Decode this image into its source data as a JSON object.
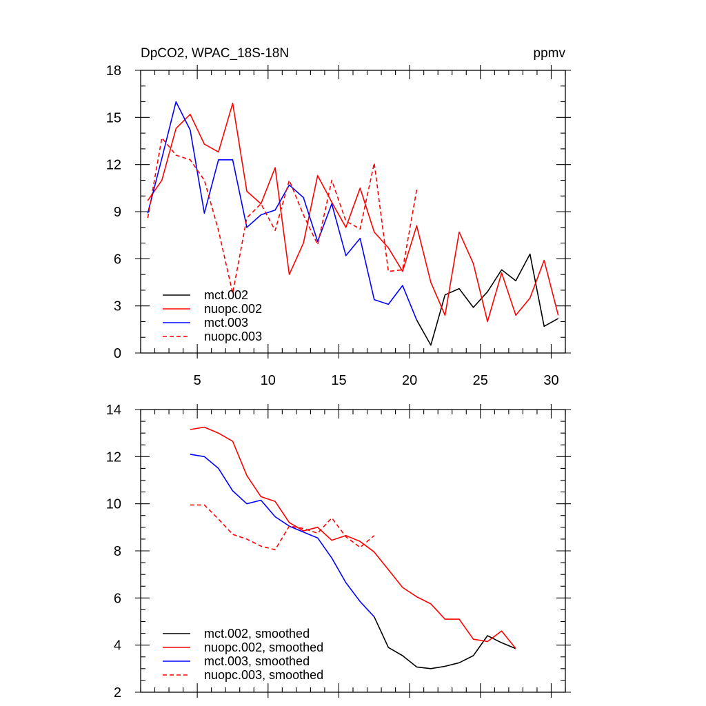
{
  "colors": {
    "mct_002": "#000000",
    "nuopc_002": "#ff0000",
    "mct_003": "#0000ff",
    "nuopc_003": "#ff0000"
  },
  "chart_data": [
    {
      "type": "line",
      "title": "DpCO2, WPAC_18S-18N",
      "units": "ppmv",
      "xlim": [
        1,
        31
      ],
      "ylim": [
        0,
        18
      ],
      "xticks": [
        5,
        10,
        15,
        20,
        25,
        30
      ],
      "xtick_labels": [
        "5",
        "10",
        "15",
        "20",
        "25",
        "30"
      ],
      "yticks": [
        0,
        3,
        6,
        9,
        12,
        15,
        18
      ],
      "ytick_labels": [
        "0",
        "3",
        "6",
        "9",
        "12",
        "15",
        "18"
      ],
      "legend_position": "bottom-left",
      "series": [
        {
          "name": "mct.002",
          "style": "solid",
          "color": "#000000",
          "x": [
            20.5,
            21.5,
            22.5,
            23.5,
            24.5,
            25.5,
            26.5,
            27.5,
            28.5,
            29.5,
            30.5
          ],
          "y": [
            2.1,
            0.5,
            3.7,
            4.1,
            2.9,
            3.9,
            5.3,
            4.6,
            6.3,
            1.7,
            2.2
          ]
        },
        {
          "name": "nuopc.002",
          "style": "solid",
          "color": "#ff0000",
          "x": [
            1.5,
            2.5,
            3.5,
            4.5,
            5.5,
            6.5,
            7.5,
            8.5,
            9.5,
            10.5,
            11.5,
            12.5,
            13.5,
            14.5,
            15.5,
            16.5,
            17.5,
            18.5,
            19.5,
            20.5,
            21.5,
            22.5,
            23.5,
            24.5,
            25.5,
            26.5,
            27.5,
            28.5,
            29.5,
            30.5
          ],
          "y": [
            9.7,
            11.0,
            14.3,
            15.2,
            13.3,
            12.8,
            15.9,
            10.3,
            9.5,
            11.8,
            5.0,
            7.0,
            11.3,
            9.6,
            8.0,
            10.5,
            7.7,
            6.7,
            5.2,
            8.1,
            4.5,
            2.4,
            7.7,
            5.7,
            2.0,
            5.1,
            2.4,
            3.5,
            5.9,
            2.4
          ]
        },
        {
          "name": "mct.003",
          "style": "solid",
          "color": "#0000ff",
          "x": [
            1.5,
            2.5,
            3.5,
            4.5,
            5.5,
            6.5,
            7.5,
            8.5,
            9.5,
            10.5,
            11.5,
            12.5,
            13.5,
            14.5,
            15.5,
            16.5,
            17.5,
            18.5,
            19.5,
            20.5
          ],
          "y": [
            8.9,
            12.4,
            16.0,
            14.2,
            8.9,
            12.3,
            12.3,
            8.0,
            8.8,
            9.1,
            10.7,
            9.9,
            7.1,
            9.5,
            6.2,
            7.3,
            3.4,
            3.1,
            4.3,
            2.1
          ]
        },
        {
          "name": "nuopc.003",
          "style": "dashed",
          "color": "#ff0000",
          "x": [
            1.5,
            2.5,
            3.5,
            4.5,
            5.5,
            6.5,
            7.5,
            8.5,
            9.5,
            10.5,
            11.5,
            12.5,
            13.5,
            14.5,
            15.5,
            16.5,
            17.5,
            18.5,
            19.5,
            20.5
          ],
          "y": [
            8.6,
            13.7,
            12.6,
            12.3,
            11.0,
            7.8,
            3.8,
            8.6,
            9.5,
            7.8,
            11.0,
            8.8,
            6.9,
            11.0,
            8.4,
            7.9,
            12.1,
            5.2,
            5.3,
            10.4
          ]
        }
      ]
    },
    {
      "type": "line",
      "title": "",
      "xlim": [
        1,
        31
      ],
      "ylim": [
        2,
        14
      ],
      "xticks": [
        5,
        10,
        15,
        20,
        25,
        30
      ],
      "yticks": [
        2,
        4,
        6,
        8,
        10,
        12,
        14
      ],
      "ytick_labels": [
        "2",
        "4",
        "6",
        "8",
        "10",
        "12",
        "14"
      ],
      "legend_position": "bottom-left",
      "series": [
        {
          "name": "mct.002, smoothed",
          "style": "solid",
          "color": "#000000",
          "x": [
            17.5,
            18.5,
            19.5,
            20.5,
            21.5,
            22.5,
            23.5,
            24.5,
            25.5,
            26.5,
            27.5
          ],
          "y": [
            5.2,
            3.9,
            3.55,
            3.07,
            3.0,
            3.1,
            3.25,
            3.55,
            4.4,
            4.1,
            3.85
          ]
        },
        {
          "name": "nuopc.002, smoothed",
          "style": "solid",
          "color": "#ff0000",
          "x": [
            4.5,
            5.5,
            6.5,
            7.5,
            8.5,
            9.5,
            10.5,
            11.5,
            12.5,
            13.5,
            14.5,
            15.5,
            16.5,
            17.5,
            18.5,
            19.5,
            20.5,
            21.5,
            22.5,
            23.5,
            24.5,
            25.5,
            26.5,
            27.5
          ],
          "y": [
            13.15,
            13.25,
            13.0,
            12.65,
            11.2,
            10.3,
            10.1,
            9.2,
            8.85,
            9.0,
            8.45,
            8.65,
            8.4,
            7.95,
            7.2,
            6.45,
            6.05,
            5.75,
            5.1,
            5.1,
            4.25,
            4.15,
            4.6,
            3.85
          ]
        },
        {
          "name": "mct.003, smoothed",
          "style": "solid",
          "color": "#0000ff",
          "x": [
            4.5,
            5.5,
            6.5,
            7.5,
            8.5,
            9.5,
            10.5,
            11.5,
            12.5,
            13.5,
            14.5,
            15.5,
            16.5,
            17.5
          ],
          "y": [
            12.1,
            12.0,
            11.5,
            10.55,
            10.0,
            10.15,
            9.45,
            9.05,
            8.8,
            8.55,
            7.7,
            6.65,
            5.85,
            5.2
          ]
        },
        {
          "name": "nuopc.003, smoothed",
          "style": "dashed",
          "color": "#ff0000",
          "x": [
            4.5,
            5.5,
            6.5,
            7.5,
            8.5,
            9.5,
            10.5,
            11.5,
            12.5,
            13.5,
            14.5,
            15.5,
            16.5,
            17.5
          ],
          "y": [
            9.95,
            9.95,
            9.35,
            8.7,
            8.5,
            8.2,
            8.05,
            9.05,
            8.95,
            8.75,
            9.4,
            8.6,
            8.15,
            8.65
          ]
        }
      ]
    }
  ]
}
